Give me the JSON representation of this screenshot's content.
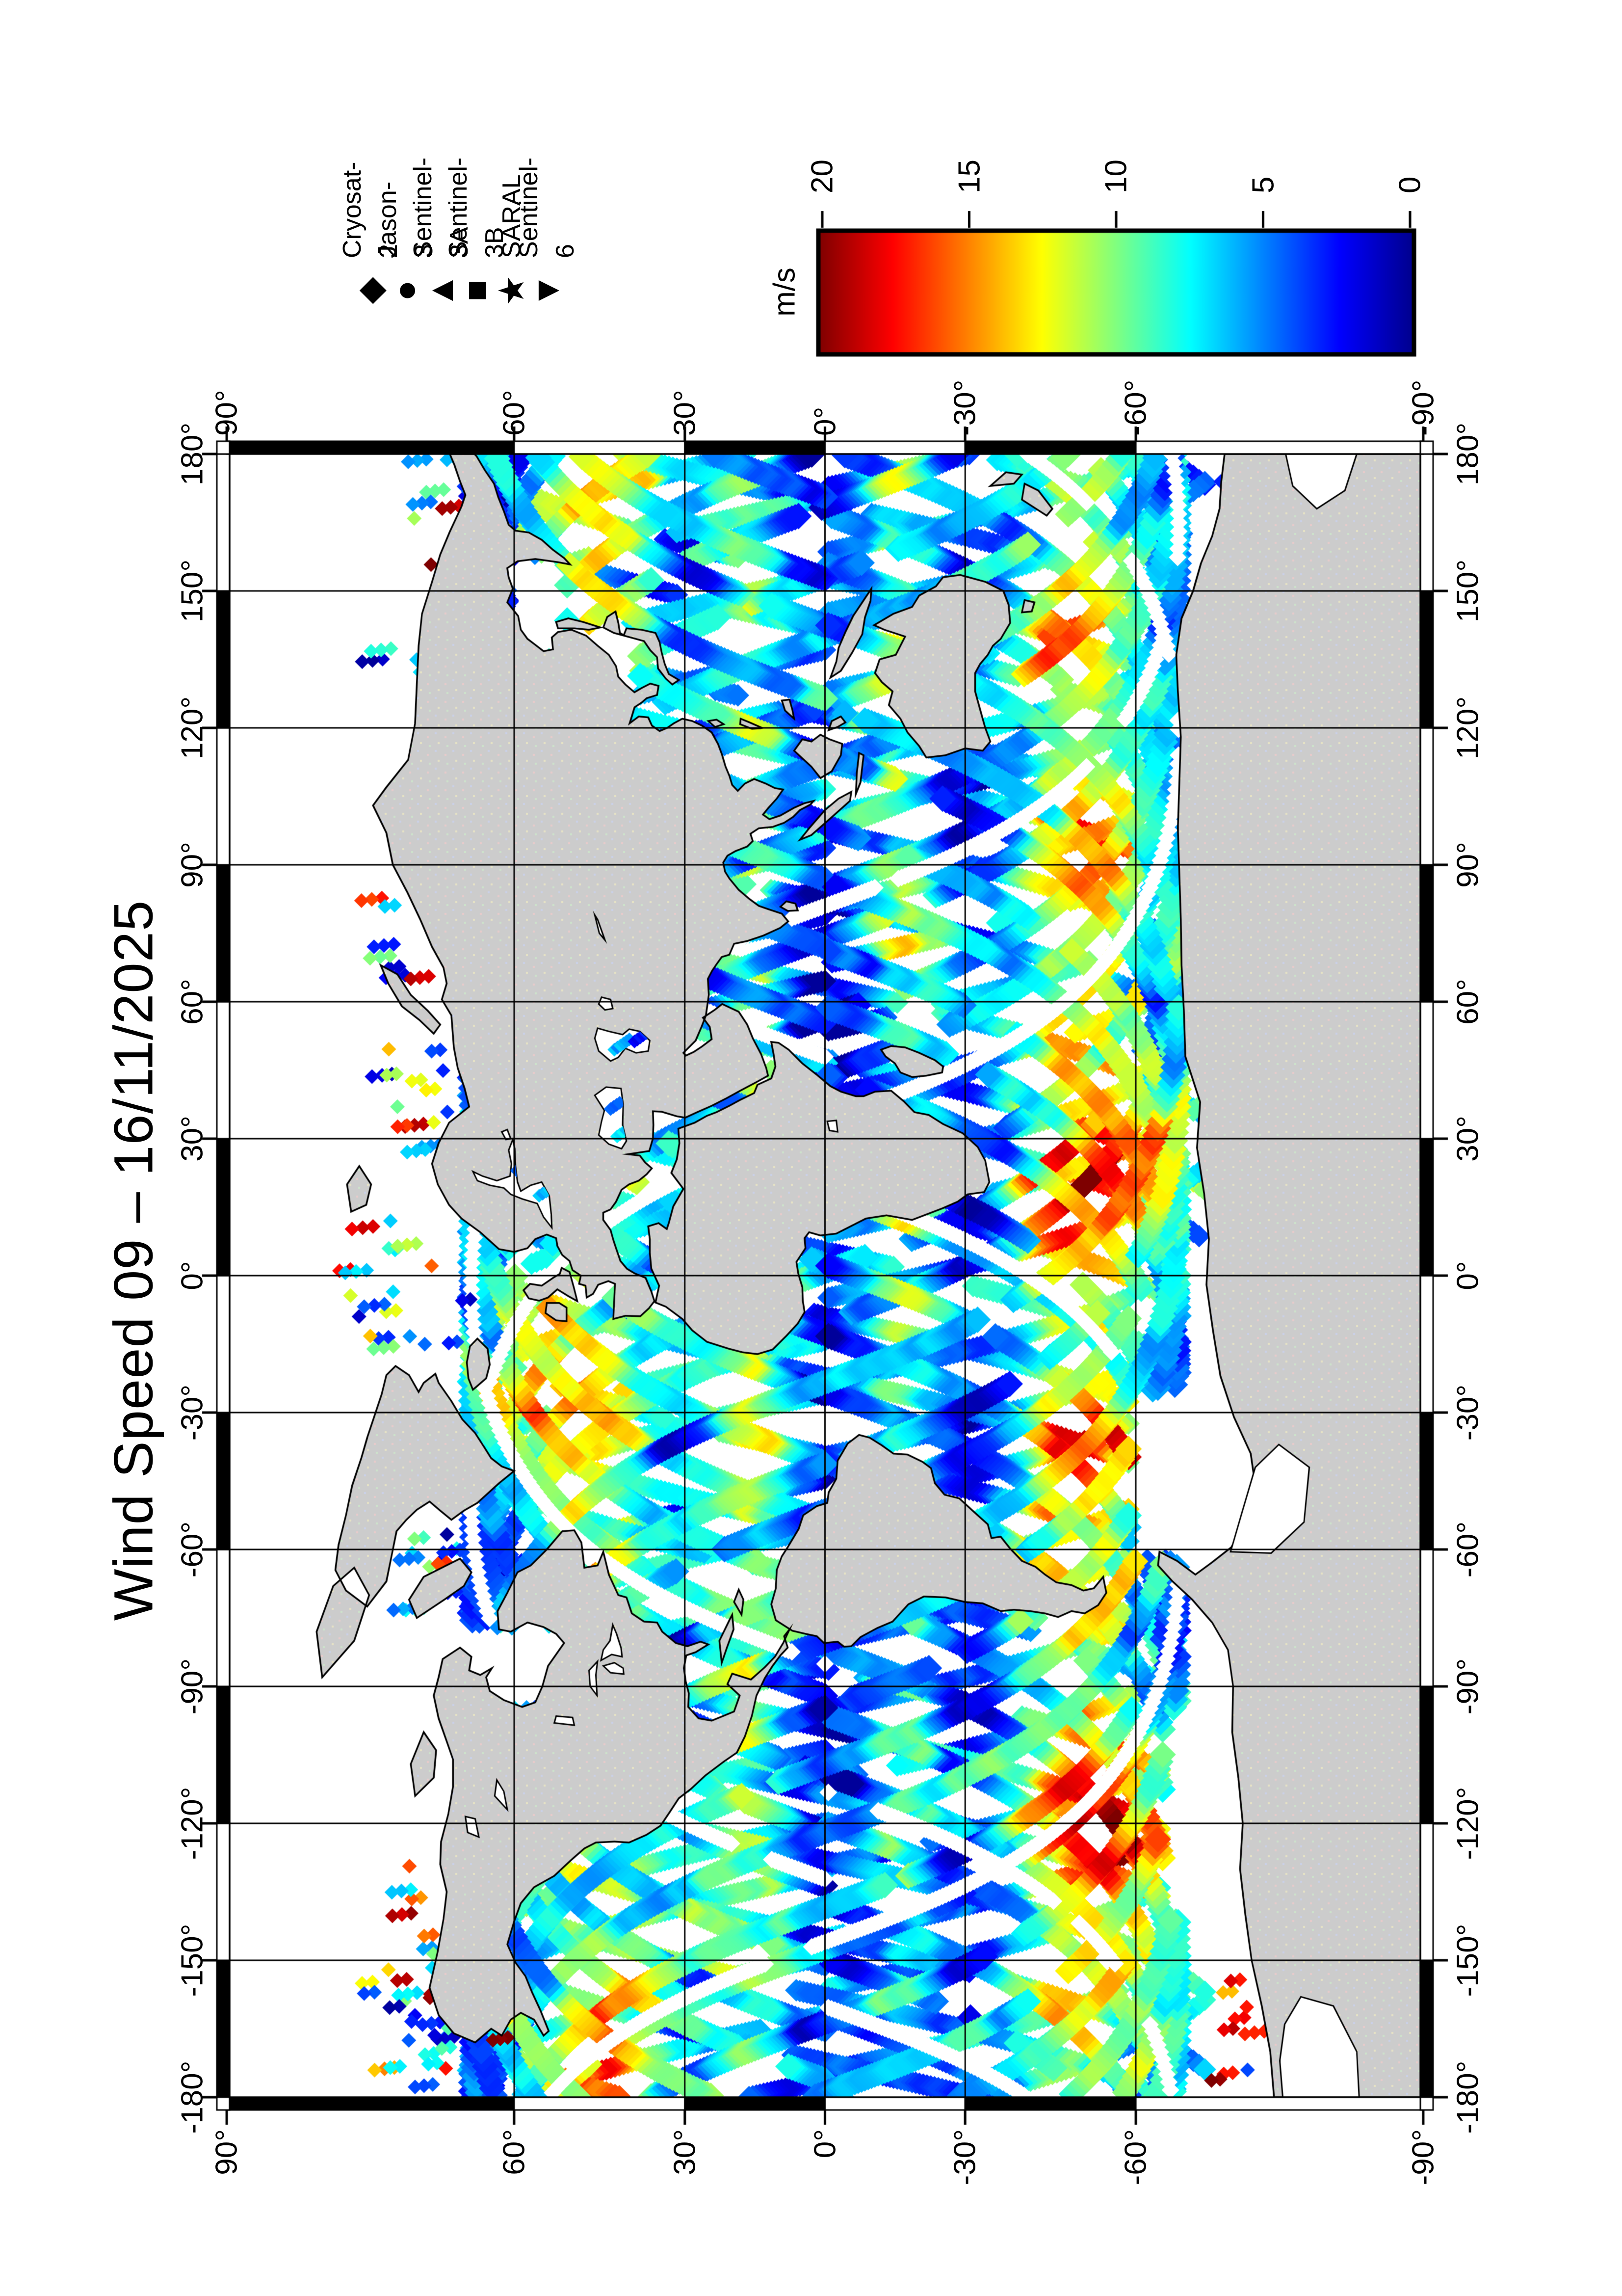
{
  "title": "Wind Speed 09 – 16/11/2025",
  "legend": {
    "items": [
      {
        "name": "Cryosat-2",
        "symbol": "diamond",
        "glyph": "◆"
      },
      {
        "name": "Jason-3",
        "symbol": "circle",
        "glyph": "●"
      },
      {
        "name": "Sentinel-3A",
        "symbol": "triangle",
        "glyph": "▲"
      },
      {
        "name": "Sentinel-3B",
        "symbol": "square",
        "glyph": "■"
      },
      {
        "name": "SARAL",
        "symbol": "star",
        "glyph": "★"
      },
      {
        "name": "Sentinel-6",
        "symbol": "inv-triangle",
        "glyph": "▼"
      }
    ]
  },
  "colorbar": {
    "label": "m/s",
    "min": 0,
    "max": 20,
    "tick_labels": [
      "20",
      "15",
      "10",
      "5",
      "0"
    ],
    "stops": [
      {
        "value": 0,
        "color": "#00008C"
      },
      {
        "value": 2.5,
        "color": "#0000FF"
      },
      {
        "value": 7.5,
        "color": "#00FFFF"
      },
      {
        "value": 12.5,
        "color": "#FFFF00"
      },
      {
        "value": 17.5,
        "color": "#FF0000"
      },
      {
        "value": 20,
        "color": "#7E0000"
      }
    ]
  },
  "map": {
    "projection": "Miller cylindrical",
    "lon_min": -180,
    "lon_max": 180,
    "lat_min": -90,
    "lat_max": 90,
    "grid_interval_deg": 30,
    "lon_labels": [
      "-180°",
      "-150°",
      "-120°",
      "-90°",
      "-60°",
      "-30°",
      "0°",
      "30°",
      "60°",
      "90°",
      "120°",
      "150°",
      "180°"
    ],
    "lat_labels": [
      "90°",
      "60°",
      "30°",
      "0°",
      "-30°",
      "-60°",
      "-90°"
    ],
    "land_color": "#cccccc",
    "ocean_color": "#ffffff"
  },
  "chart_data": {
    "type": "heatmap",
    "title": "Wind Speed 09 – 16/11/2025",
    "variable": "wind speed",
    "units": "m/s",
    "range": [
      0,
      20
    ],
    "colorbar_ticks": [
      0,
      5,
      10,
      15,
      20
    ],
    "date": "16/11/2025",
    "index": "09",
    "colormap": "jet",
    "satellites": [
      "Cryosat-2",
      "Jason-3",
      "Sentinel-3A",
      "Sentinel-3B",
      "SARAL",
      "Sentinel-6"
    ],
    "coverage": "global ocean along-track altimeter passes, crisscrossing ground tracks; calm (blue) equatorial bands, strong (yellow-red) mid-latitude storm tracks, sparse scattered points poleward of 66°"
  }
}
